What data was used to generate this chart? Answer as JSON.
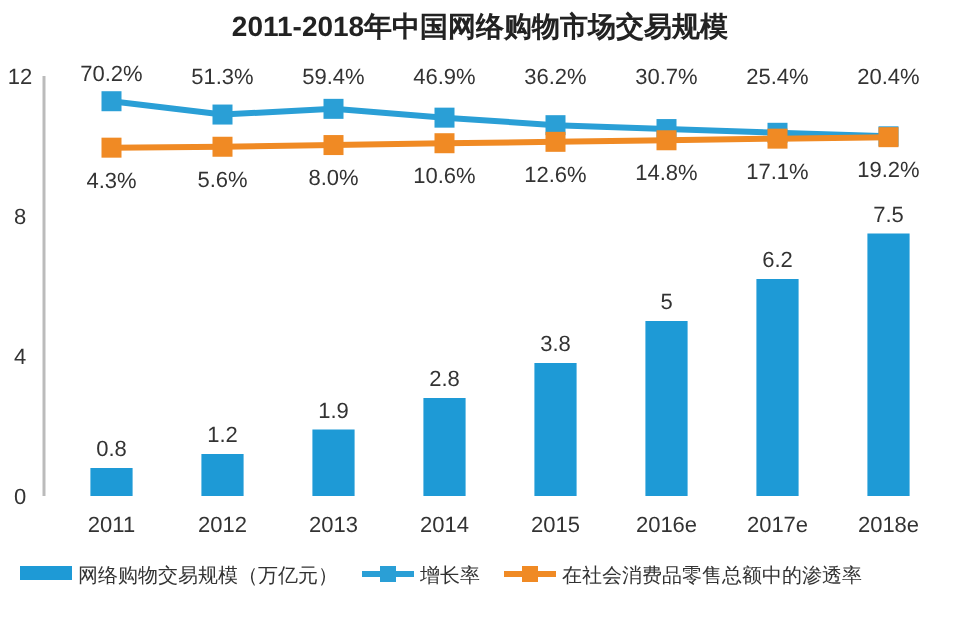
{
  "chart_data": {
    "type": "bar",
    "title": "2011-2018年中国网络购物市场交易规模",
    "categories": [
      "2011",
      "2012",
      "2013",
      "2014",
      "2015",
      "2016e",
      "2017e",
      "2018e"
    ],
    "series": [
      {
        "name": "网络购物交易规模（万亿元）",
        "color": "#1e9ad6",
        "values": [
          0.8,
          1.2,
          1.9,
          2.8,
          3.8,
          5,
          6.2,
          7.5
        ]
      },
      {
        "name": "增长率",
        "type": "line",
        "axis": "y2",
        "color": "#2a9fd6",
        "values": [
          70.2,
          51.3,
          59.4,
          46.9,
          36.2,
          30.7,
          25.4,
          20.4
        ],
        "value_labels": [
          "70.2%",
          "51.3%",
          "59.4%",
          "46.9%",
          "36.2%",
          "30.7%",
          "25.4%",
          "20.4%"
        ]
      },
      {
        "name": "在社会消费品零售总额中的渗透率",
        "type": "line",
        "axis": "y2",
        "color": "#f08a24",
        "values": [
          4.3,
          5.6,
          8.0,
          10.6,
          12.6,
          14.8,
          17.1,
          19.2
        ],
        "value_labels": [
          "4.3%",
          "5.6%",
          "8.0%",
          "10.6%",
          "12.6%",
          "14.8%",
          "17.1%",
          "19.2%"
        ]
      }
    ],
    "ylim": [
      0,
      12
    ],
    "yticks": [
      0,
      4,
      8,
      12
    ],
    "y2lim": [
      -490,
      106
    ],
    "data_labels": true,
    "marker": "square",
    "legend": "bottom",
    "grid": false
  }
}
